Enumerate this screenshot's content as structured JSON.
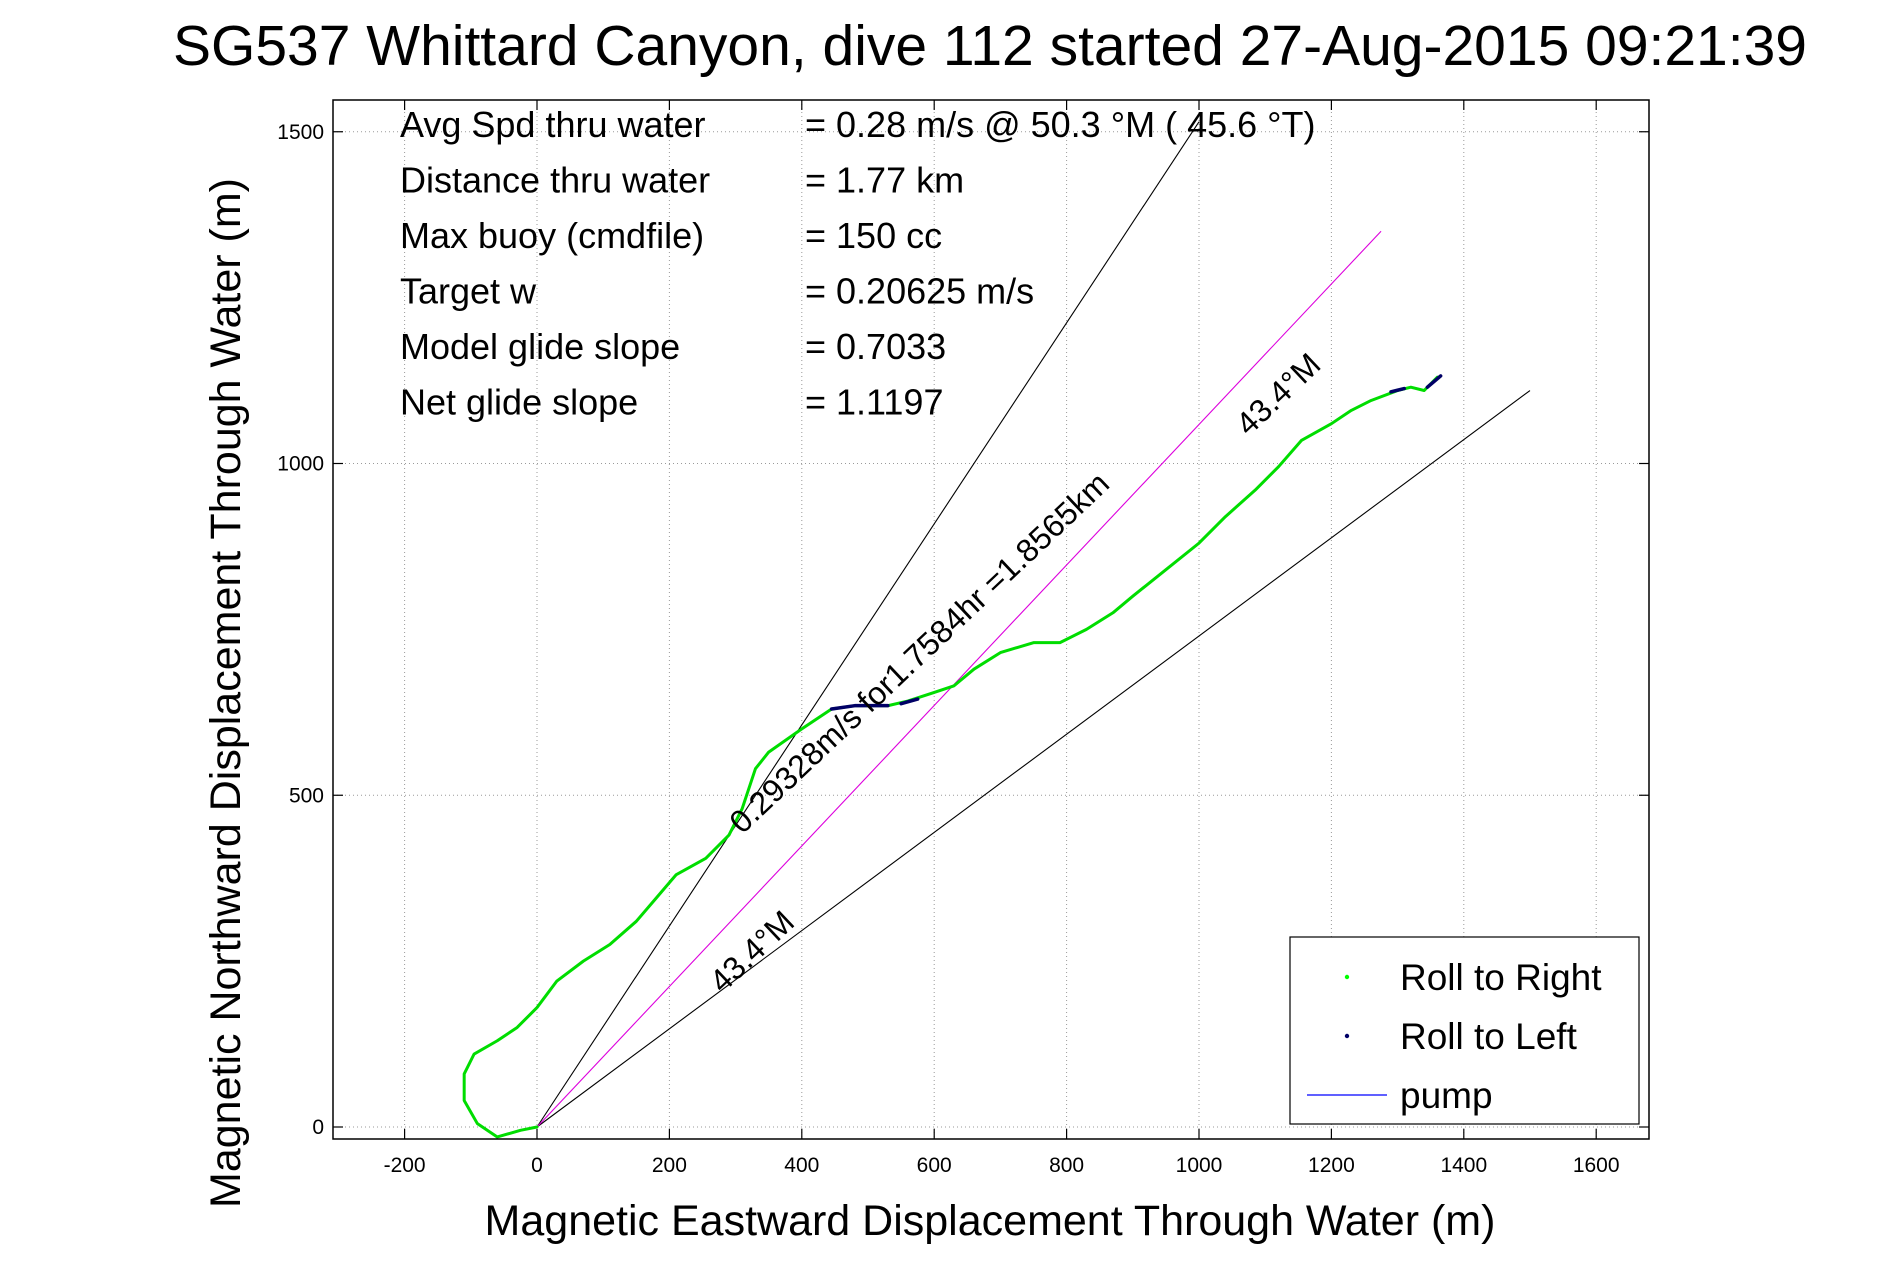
{
  "chart_data": {
    "type": "line",
    "title": "SG537 Whittard Canyon, dive 112 started 27-Aug-2015 09:21:39",
    "xlabel": "Magnetic Eastward Displacement Through Water (m)",
    "ylabel": "Magnetic Northward Displacement Through Water (m)",
    "xlim": [
      -300,
      1700
    ],
    "ylim": [
      -15,
      1550
    ],
    "x_ticks": [
      "-200",
      "0",
      "200",
      "400",
      "600",
      "800",
      "1000",
      "1200",
      "1400",
      "1600"
    ],
    "x_tick_values": [
      -200,
      0,
      200,
      400,
      600,
      800,
      1000,
      1200,
      1400,
      1600
    ],
    "y_ticks": [
      "0",
      "500",
      "1000",
      "1500"
    ],
    "y_tick_values": [
      0,
      500,
      1000,
      1500
    ],
    "grid": true,
    "legend_placement": "bottom-right",
    "legend": [
      {
        "label": "Roll to Right",
        "color": "#00ff00",
        "marker": "dot"
      },
      {
        "label": "Roll to Left",
        "color": "#000066",
        "marker": "dot"
      },
      {
        "label": "pump",
        "color": "#0000ff",
        "marker": "line"
      }
    ],
    "info_lines": [
      {
        "label": "Avg Spd thru water",
        "value": "=  0.28 m/s @  50.3 °M ( 45.6 °T)"
      },
      {
        "label": "Distance thru water",
        "value": "=  1.77 km"
      },
      {
        "label": "Max buoy (cmdfile)",
        "value": "= 150 cc"
      },
      {
        "label": "Target w",
        "value": "= 0.20625 m/s"
      },
      {
        "label": "Model glide slope",
        "value": "= 0.7033"
      },
      {
        "label": "Net glide slope",
        "value": "= 1.1197"
      }
    ],
    "annotations": [
      {
        "text": "0.29328m/s for1.7584hr =1.8565km",
        "x": 310,
        "y": 440,
        "angle": 43.4
      },
      {
        "text": "43.4°M",
        "x": 1075,
        "y": 1040,
        "angle": 43.4
      },
      {
        "text": "43.4°M",
        "x": 280,
        "y": 200,
        "angle": 43.4
      }
    ],
    "series": [
      {
        "name": "Roll to Right",
        "color": "#00dd00",
        "points": [
          [
            0,
            0
          ],
          [
            -25,
            -5
          ],
          [
            -60,
            -15
          ],
          [
            -90,
            5
          ],
          [
            -110,
            40
          ],
          [
            -110,
            80
          ],
          [
            -95,
            110
          ],
          [
            -60,
            130
          ],
          [
            -30,
            150
          ],
          [
            0,
            180
          ],
          [
            30,
            220
          ],
          [
            70,
            250
          ],
          [
            110,
            275
          ],
          [
            150,
            310
          ],
          [
            180,
            345
          ],
          [
            210,
            380
          ],
          [
            255,
            405
          ],
          [
            290,
            440
          ],
          [
            310,
            480
          ],
          [
            330,
            540
          ],
          [
            350,
            565
          ],
          [
            400,
            600
          ],
          [
            445,
            630
          ],
          [
            480,
            635
          ],
          [
            530,
            635
          ],
          [
            560,
            642
          ],
          [
            600,
            655
          ],
          [
            630,
            665
          ],
          [
            660,
            690
          ],
          [
            700,
            715
          ],
          [
            750,
            730
          ],
          [
            790,
            730
          ],
          [
            830,
            750
          ],
          [
            870,
            775
          ],
          [
            900,
            800
          ],
          [
            950,
            840
          ],
          [
            1000,
            880
          ],
          [
            1040,
            920
          ],
          [
            1085,
            960
          ],
          [
            1120,
            995
          ],
          [
            1155,
            1035
          ],
          [
            1200,
            1060
          ],
          [
            1230,
            1080
          ],
          [
            1260,
            1095
          ],
          [
            1300,
            1110
          ],
          [
            1320,
            1115
          ],
          [
            1340,
            1110
          ],
          [
            1360,
            1130
          ]
        ]
      },
      {
        "name": "Roll to Left",
        "color": "#000066",
        "points": [
          [
            445,
            630
          ],
          [
            480,
            635
          ],
          [
            510,
            635
          ],
          [
            530,
            635
          ]
        ]
      },
      {
        "name": "Roll to Left",
        "color": "#000066",
        "points": [
          [
            550,
            638
          ],
          [
            575,
            645
          ]
        ]
      },
      {
        "name": "Roll to Left",
        "color": "#000066",
        "points": [
          [
            1290,
            1108
          ],
          [
            1310,
            1113
          ]
        ]
      },
      {
        "name": "Roll to Left",
        "color": "#000066",
        "points": [
          [
            1345,
            1115
          ],
          [
            1365,
            1132
          ]
        ]
      }
    ],
    "reference_lines": [
      {
        "color": "#000000",
        "points": [
          [
            0,
            0
          ],
          [
            1000,
            1515
          ]
        ]
      },
      {
        "color": "#000000",
        "points": [
          [
            0,
            0
          ],
          [
            1500,
            1110
          ]
        ]
      },
      {
        "color": "#dd00dd",
        "points": [
          [
            0,
            0
          ],
          [
            1275,
            1350
          ]
        ]
      }
    ]
  }
}
